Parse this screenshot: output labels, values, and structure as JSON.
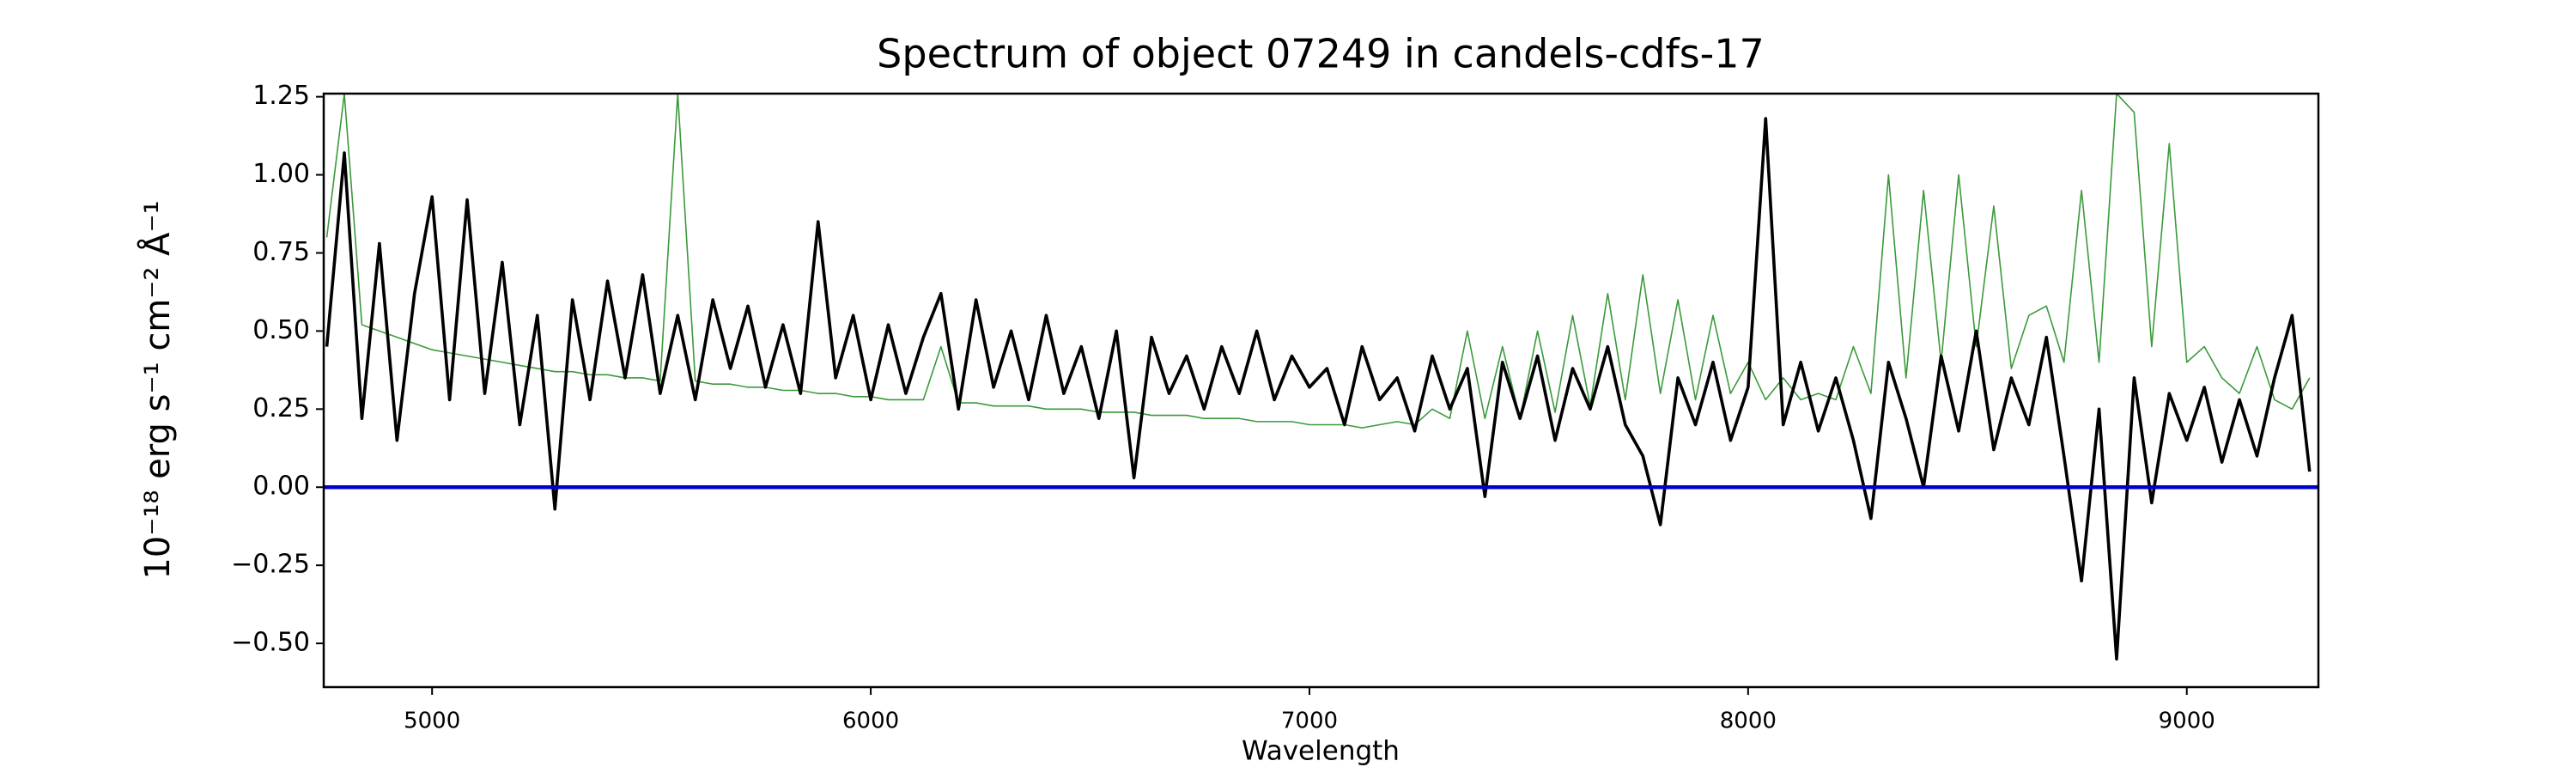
{
  "chart_data": {
    "type": "line",
    "title": "Spectrum of object 07249 in candels-cdfs-17",
    "xlabel": "Wavelength",
    "ylabel": "10⁻¹⁸ erg s⁻¹ cm⁻² Å⁻¹",
    "xlim": [
      4753,
      9300
    ],
    "ylim": [
      -0.64,
      1.26
    ],
    "xticks": [
      5000,
      6000,
      7000,
      8000,
      9000
    ],
    "yticks": [
      {
        "value": -0.5,
        "label": "−0.50"
      },
      {
        "value": -0.25,
        "label": "−0.25"
      },
      {
        "value": 0,
        "label": "0.00"
      },
      {
        "value": 0.25,
        "label": "0.25"
      },
      {
        "value": 0.5,
        "label": "0.50"
      },
      {
        "value": 0.75,
        "label": "0.75"
      },
      {
        "value": 1,
        "label": "1.00"
      },
      {
        "value": 1.25,
        "label": "1.25"
      }
    ],
    "grid": false,
    "series": [
      {
        "color": "#3a9a3a",
        "width": 1.6,
        "x": [
          4760,
          4800,
          4840,
          4880,
          4920,
          4960,
          5000,
          5040,
          5080,
          5120,
          5160,
          5200,
          5240,
          5280,
          5320,
          5360,
          5400,
          5440,
          5480,
          5520,
          5560,
          5600,
          5640,
          5680,
          5720,
          5760,
          5800,
          5840,
          5880,
          5920,
          5960,
          6000,
          6040,
          6080,
          6120,
          6160,
          6200,
          6240,
          6280,
          6320,
          6360,
          6400,
          6440,
          6480,
          6520,
          6560,
          6600,
          6640,
          6680,
          6720,
          6760,
          6800,
          6840,
          6880,
          6920,
          6960,
          7000,
          7040,
          7080,
          7120,
          7160,
          7200,
          7240,
          7280,
          7320,
          7360,
          7400,
          7440,
          7480,
          7520,
          7560,
          7600,
          7640,
          7680,
          7720,
          7760,
          7800,
          7840,
          7880,
          7920,
          7960,
          8000,
          8040,
          8080,
          8120,
          8160,
          8200,
          8240,
          8280,
          8320,
          8360,
          8400,
          8440,
          8480,
          8520,
          8560,
          8600,
          8640,
          8680,
          8720,
          8760,
          8800,
          8840,
          8880,
          8920,
          8960,
          9000,
          9040,
          9080,
          9120,
          9160,
          9200,
          9240,
          9280
        ],
        "values": [
          0.8,
          1.26,
          0.52,
          0.5,
          0.48,
          0.46,
          0.44,
          0.43,
          0.42,
          0.41,
          0.4,
          0.39,
          0.38,
          0.37,
          0.37,
          0.36,
          0.36,
          0.35,
          0.35,
          0.34,
          1.26,
          0.34,
          0.33,
          0.33,
          0.32,
          0.32,
          0.31,
          0.31,
          0.3,
          0.3,
          0.29,
          0.29,
          0.28,
          0.28,
          0.28,
          0.45,
          0.27,
          0.27,
          0.26,
          0.26,
          0.26,
          0.25,
          0.25,
          0.25,
          0.24,
          0.24,
          0.24,
          0.23,
          0.23,
          0.23,
          0.22,
          0.22,
          0.22,
          0.21,
          0.21,
          0.21,
          0.2,
          0.2,
          0.2,
          0.19,
          0.2,
          0.21,
          0.2,
          0.25,
          0.22,
          0.5,
          0.22,
          0.45,
          0.22,
          0.5,
          0.24,
          0.55,
          0.26,
          0.62,
          0.28,
          0.68,
          0.3,
          0.6,
          0.28,
          0.55,
          0.3,
          0.4,
          0.28,
          0.35,
          0.28,
          0.3,
          0.28,
          0.45,
          0.3,
          1.0,
          0.35,
          0.95,
          0.4,
          1.0,
          0.45,
          0.9,
          0.38,
          0.55,
          0.58,
          0.4,
          0.95,
          0.4,
          1.26,
          1.2,
          0.45,
          1.1,
          0.4,
          0.45,
          0.35,
          0.3,
          0.45,
          0.28,
          0.25,
          0.35
        ]
      },
      {
        "color": "#000000",
        "width": 3.6,
        "x": [
          4760,
          4800,
          4840,
          4880,
          4920,
          4960,
          5000,
          5040,
          5080,
          5120,
          5160,
          5200,
          5240,
          5280,
          5320,
          5360,
          5400,
          5440,
          5480,
          5520,
          5560,
          5600,
          5640,
          5680,
          5720,
          5760,
          5800,
          5840,
          5880,
          5920,
          5960,
          6000,
          6040,
          6080,
          6120,
          6160,
          6200,
          6240,
          6280,
          6320,
          6360,
          6400,
          6440,
          6480,
          6520,
          6560,
          6600,
          6640,
          6680,
          6720,
          6760,
          6800,
          6840,
          6880,
          6920,
          6960,
          7000,
          7040,
          7080,
          7120,
          7160,
          7200,
          7240,
          7280,
          7320,
          7360,
          7400,
          7440,
          7480,
          7520,
          7560,
          7600,
          7640,
          7680,
          7720,
          7760,
          7800,
          7840,
          7880,
          7920,
          7960,
          8000,
          8040,
          8080,
          8120,
          8160,
          8200,
          8240,
          8280,
          8320,
          8360,
          8400,
          8440,
          8480,
          8520,
          8560,
          8600,
          8640,
          8680,
          8720,
          8760,
          8800,
          8840,
          8880,
          8920,
          8960,
          9000,
          9040,
          9080,
          9120,
          9160,
          9200,
          9240,
          9280
        ],
        "values": [
          0.45,
          1.07,
          0.22,
          0.78,
          0.15,
          0.62,
          0.93,
          0.28,
          0.92,
          0.3,
          0.72,
          0.2,
          0.55,
          -0.07,
          0.6,
          0.28,
          0.66,
          0.35,
          0.68,
          0.3,
          0.55,
          0.28,
          0.6,
          0.38,
          0.58,
          0.32,
          0.52,
          0.3,
          0.85,
          0.35,
          0.55,
          0.28,
          0.52,
          0.3,
          0.48,
          0.62,
          0.25,
          0.6,
          0.32,
          0.5,
          0.28,
          0.55,
          0.3,
          0.45,
          0.22,
          0.5,
          0.03,
          0.48,
          0.3,
          0.42,
          0.25,
          0.45,
          0.3,
          0.5,
          0.28,
          0.42,
          0.32,
          0.38,
          0.2,
          0.45,
          0.28,
          0.35,
          0.18,
          0.42,
          0.25,
          0.38,
          -0.03,
          0.4,
          0.22,
          0.42,
          0.15,
          0.38,
          0.25,
          0.45,
          0.2,
          0.1,
          -0.12,
          0.35,
          0.2,
          0.4,
          0.15,
          0.32,
          1.18,
          0.2,
          0.4,
          0.18,
          0.35,
          0.15,
          -0.1,
          0.4,
          0.22,
          0.0,
          0.42,
          0.18,
          0.5,
          0.12,
          0.35,
          0.2,
          0.48,
          0.1,
          -0.3,
          0.25,
          -0.55,
          0.35,
          -0.05,
          0.3,
          0.15,
          0.32,
          0.08,
          0.28,
          0.1,
          0.35,
          0.55,
          0.05
        ]
      },
      {
        "color": "#0000cc",
        "width": 4.5,
        "x": [
          4753,
          9300
        ],
        "values": [
          0,
          0
        ]
      }
    ]
  }
}
